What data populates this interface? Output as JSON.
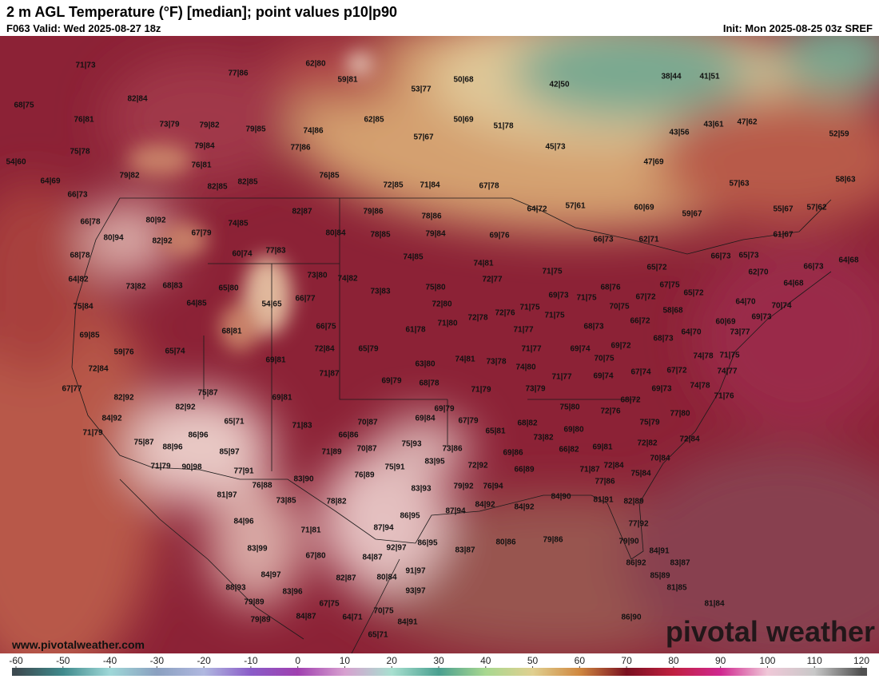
{
  "header": {
    "title": "2 m AGL Temperature (°F) [median]; point values p10|p90",
    "valid": "F063 Valid: Wed 2025-08-27 18z",
    "init": "Init: Mon 2025-08-25 03z SREF"
  },
  "footer": {
    "url": "www.pivotalweather.com",
    "logo": "pivotal weather"
  },
  "colorbar": {
    "ticks": [
      -60,
      -50,
      -40,
      -30,
      -20,
      -10,
      0,
      10,
      20,
      30,
      40,
      50,
      60,
      70,
      80,
      90,
      100,
      110,
      120
    ],
    "colors": [
      "#3d4a50",
      "#3f8a8c",
      "#9fd8d8",
      "#8aa0c0",
      "#b0b8e0",
      "#8a5cc8",
      "#a040b0",
      "#d8a0d0",
      "#a8e0d0",
      "#4aa090",
      "#a8d890",
      "#e0d090",
      "#d08840",
      "#7a1020",
      "#c02040",
      "#d02890",
      "#f0c8d8",
      "#c8c8c8",
      "#505050"
    ]
  },
  "points": [
    "71|73",
    "62|80",
    "77|86",
    "59|81",
    "53|77",
    "50|68",
    "42|50",
    "38|44",
    "41|51",
    "68|75",
    "82|84",
    "76|81",
    "73|79",
    "79|82",
    "79|85",
    "74|86",
    "62|85",
    "50|69",
    "51|78",
    "57|67",
    "43|56",
    "43|61",
    "47|62",
    "52|59",
    "79|84",
    "77|86",
    "45|73",
    "75|78",
    "54|60",
    "76|81",
    "79|82",
    "76|85",
    "47|69",
    "64|69",
    "82|85",
    "82|85",
    "72|85",
    "71|84",
    "67|78",
    "57|63",
    "58|63",
    "66|73",
    "82|87",
    "79|86",
    "78|86",
    "64|72",
    "57|61",
    "60|69",
    "59|67",
    "55|67",
    "57|62",
    "66|78",
    "80|92",
    "74|85",
    "80|84",
    "78|85",
    "79|84",
    "69|76",
    "61|67",
    "80|94",
    "82|92",
    "67|79",
    "66|73",
    "62|71",
    "68|78",
    "60|74",
    "77|83",
    "74|85",
    "74|81",
    "66|73",
    "65|73",
    "66|73",
    "64|68",
    "64|82",
    "73|82",
    "68|83",
    "65|80",
    "73|80",
    "74|82",
    "72|77",
    "71|75",
    "65|72",
    "62|70",
    "64|68",
    "68|76",
    "67|75",
    "73|83",
    "75|80",
    "69|73",
    "71|75",
    "67|72",
    "65|72",
    "54|65",
    "66|77",
    "64|85",
    "75|84",
    "72|80",
    "72|76",
    "71|75",
    "70|75",
    "58|68",
    "64|70",
    "70|74",
    "72|78",
    "71|75",
    "66|72",
    "71|80",
    "66|75",
    "68|81",
    "61|78",
    "71|77",
    "68|73",
    "64|70",
    "60|69",
    "69|73",
    "69|85",
    "73|77",
    "59|76",
    "65|74",
    "72|84",
    "65|79",
    "71|77",
    "69|74",
    "69|72",
    "68|73",
    "74|78",
    "71|75",
    "69|81",
    "74|81",
    "73|78",
    "70|75",
    "63|80",
    "72|84",
    "71|87",
    "74|80",
    "71|77",
    "69|74",
    "67|74",
    "67|72",
    "74|77",
    "69|79",
    "68|78",
    "74|78",
    "67|77",
    "71|79",
    "73|79",
    "69|73",
    "71|76",
    "75|87",
    "82|92",
    "69|81",
    "68|72",
    "82|92",
    "69|79",
    "75|80",
    "72|76",
    "77|80",
    "69|84",
    "67|79",
    "68|82",
    "65|71",
    "70|87",
    "84|92",
    "75|79",
    "71|79",
    "86|96",
    "71|83",
    "65|81",
    "69|80",
    "66|86",
    "72|84",
    "73|82",
    "75|87",
    "88|96",
    "75|93",
    "73|86",
    "69|81",
    "72|82",
    "66|82",
    "70|87",
    "85|97",
    "71|89",
    "69|86",
    "70|84",
    "83|95",
    "71|79",
    "90|98",
    "77|91",
    "75|91",
    "72|92",
    "71|87",
    "72|84",
    "76|89",
    "66|89",
    "75|84",
    "83|90",
    "76|88",
    "79|92",
    "76|94",
    "77|86",
    "83|93",
    "81|97",
    "73|85",
    "78|82",
    "84|90",
    "81|91",
    "82|89",
    "87|94",
    "84|92",
    "84|92",
    "86|95",
    "84|96",
    "77|92",
    "71|81",
    "87|94",
    "79|86",
    "86|95",
    "80|86",
    "83|87",
    "92|97",
    "79|90",
    "83|99",
    "67|80",
    "84|87",
    "84|91",
    "86|92",
    "83|87",
    "84|97",
    "91|97",
    "82|87",
    "80|84",
    "85|89",
    "88|93",
    "83|96",
    "93|97",
    "81|85",
    "79|89",
    "67|75",
    "81|84",
    "70|75",
    "64|71",
    "84|87",
    "79|89",
    "86|90",
    "84|91",
    "65|71"
  ]
}
